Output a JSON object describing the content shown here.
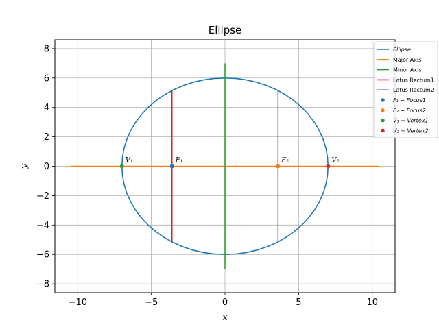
{
  "chart_data": {
    "type": "line",
    "title": "Ellipse",
    "xlabel": "x",
    "ylabel": "y",
    "xlim": [
      -11.55,
      11.55
    ],
    "ylim": [
      -8.6,
      8.6
    ],
    "xticks": [
      -10,
      -5,
      0,
      5,
      10
    ],
    "yticks": [
      -8,
      -6,
      -4,
      -2,
      0,
      2,
      4,
      6,
      8
    ],
    "xtick_labels": [
      "−10",
      "−5",
      "0",
      "5",
      "10"
    ],
    "ytick_labels": [
      "−8",
      "−6",
      "−4",
      "−2",
      "0",
      "2",
      "4",
      "6",
      "8"
    ],
    "grid": true,
    "legend_placement": "top-right-outside",
    "ellipse": {
      "a": 7,
      "b": 6,
      "center": [
        0,
        0
      ]
    },
    "series": [
      {
        "name": "Ellipse",
        "color": "#1f77b4",
        "kind": "ellipse"
      },
      {
        "name": "Major Axis",
        "color": "#ff7f0e",
        "kind": "segment",
        "x": [
          -10.5,
          10.5
        ],
        "y": [
          0,
          0
        ]
      },
      {
        "name": "Minor Axis",
        "color": "#2ca02c",
        "kind": "segment",
        "x": [
          0,
          0
        ],
        "y": [
          -7,
          7
        ]
      },
      {
        "name": "Latus Rectum1",
        "color": "#d62728",
        "kind": "segment",
        "x": [
          -3.6,
          -3.6
        ],
        "y": [
          -5.14,
          5.14
        ]
      },
      {
        "name": "Latus Rectum2",
        "color": "#9467bd",
        "kind": "segment",
        "x": [
          3.6,
          3.6
        ],
        "y": [
          -5.14,
          5.14
        ]
      },
      {
        "name": "F1 - Focus1",
        "color": "#1f77b4",
        "kind": "point",
        "x": -3.6,
        "y": 0
      },
      {
        "name": "F2 - Focus2",
        "color": "#ff7f0e",
        "kind": "point",
        "x": 3.6,
        "y": 0
      },
      {
        "name": "V1 - Vertex1",
        "color": "#2ca02c",
        "kind": "point",
        "x": -7,
        "y": 0
      },
      {
        "name": "V2 - Vertex2",
        "color": "#d62728",
        "kind": "point",
        "x": 7,
        "y": 0
      }
    ],
    "legend_entries": [
      {
        "text": "Ellipse",
        "italic": true,
        "color": "#1f77b4",
        "kind": "line"
      },
      {
        "text": "Major Axis",
        "italic": false,
        "color": "#ff7f0e",
        "kind": "line"
      },
      {
        "text": "Minor Axis",
        "italic": false,
        "color": "#2ca02c",
        "kind": "line"
      },
      {
        "text": "Latus Rectum1",
        "italic": false,
        "color": "#d62728",
        "kind": "line"
      },
      {
        "text": "Latus Rectum2",
        "italic": false,
        "color": "#9467bd",
        "kind": "line"
      },
      {
        "text": "F₁ − Focus1",
        "italic": true,
        "color": "#1f77b4",
        "kind": "dot"
      },
      {
        "text": "F₂ − Focus2",
        "italic": true,
        "color": "#ff7f0e",
        "kind": "dot"
      },
      {
        "text": "V₁ − Vertex1",
        "italic": true,
        "color": "#2ca02c",
        "kind": "dot"
      },
      {
        "text": "V₂ − Vertex2",
        "italic": true,
        "color": "#d62728",
        "kind": "dot"
      }
    ],
    "annotations": [
      {
        "text": "V₁",
        "x": -7,
        "y": 0
      },
      {
        "text": "F₁",
        "x": -3.6,
        "y": 0
      },
      {
        "text": "F₂",
        "x": 3.6,
        "y": 0
      },
      {
        "text": "V₂",
        "x": 7,
        "y": 0
      }
    ]
  }
}
